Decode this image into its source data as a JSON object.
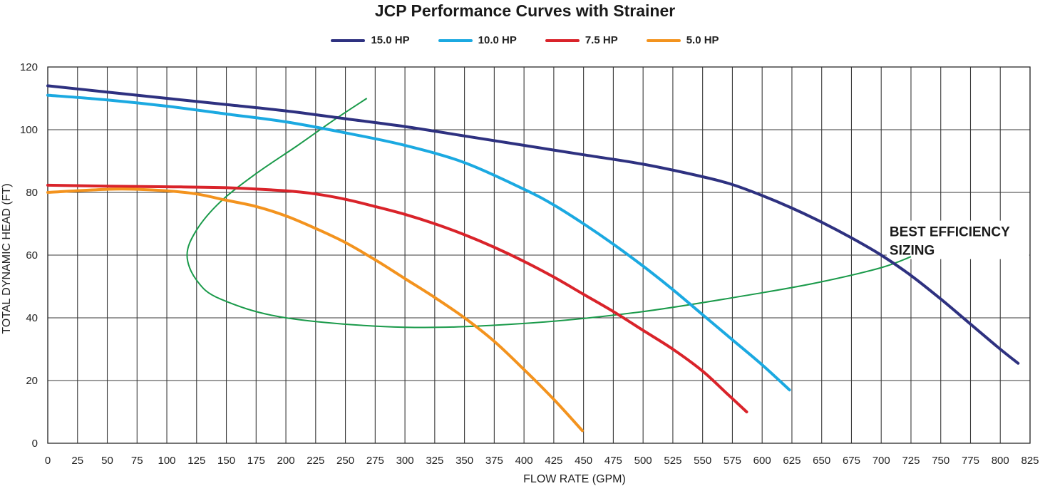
{
  "chart_data": {
    "type": "line",
    "title": "JCP Performance Curves with Strainer",
    "xlabel": "FLOW RATE (GPM)",
    "ylabel": "TOTAL DYNAMIC HEAD (FT)",
    "xlim": [
      0,
      825
    ],
    "ylim": [
      0,
      120
    ],
    "xticks": [
      0,
      25,
      50,
      75,
      100,
      125,
      150,
      175,
      200,
      225,
      250,
      275,
      300,
      325,
      350,
      375,
      400,
      425,
      450,
      475,
      500,
      525,
      550,
      575,
      600,
      625,
      650,
      675,
      700,
      725,
      750,
      775,
      800,
      825
    ],
    "yticks": [
      0,
      20,
      40,
      60,
      80,
      100,
      120
    ],
    "grid": true,
    "legend_position": "top-center",
    "series": [
      {
        "name": "15.0 HP",
        "color": "#2e3180",
        "points": [
          [
            0,
            114
          ],
          [
            50,
            112
          ],
          [
            100,
            110
          ],
          [
            150,
            108
          ],
          [
            200,
            106
          ],
          [
            250,
            103.5
          ],
          [
            300,
            101
          ],
          [
            350,
            98
          ],
          [
            400,
            95
          ],
          [
            450,
            92
          ],
          [
            500,
            89
          ],
          [
            550,
            85
          ],
          [
            575,
            82.5
          ],
          [
            600,
            79
          ],
          [
            625,
            75
          ],
          [
            650,
            70.5
          ],
          [
            675,
            65.5
          ],
          [
            700,
            60
          ],
          [
            725,
            53.5
          ],
          [
            750,
            46
          ],
          [
            775,
            38
          ],
          [
            800,
            30
          ],
          [
            815,
            25.5
          ]
        ]
      },
      {
        "name": "10.0 HP",
        "color": "#1ba9e1",
        "points": [
          [
            0,
            111
          ],
          [
            50,
            109.5
          ],
          [
            100,
            107.5
          ],
          [
            150,
            105
          ],
          [
            200,
            102.5
          ],
          [
            250,
            99
          ],
          [
            300,
            95
          ],
          [
            350,
            89.5
          ],
          [
            400,
            81
          ],
          [
            425,
            76
          ],
          [
            450,
            70
          ],
          [
            475,
            63.5
          ],
          [
            500,
            56.5
          ],
          [
            525,
            49
          ],
          [
            550,
            41
          ],
          [
            575,
            33
          ],
          [
            600,
            25
          ],
          [
            623,
            17
          ]
        ]
      },
      {
        "name": "7.5 HP",
        "color": "#d9232a",
        "points": [
          [
            0,
            82.3
          ],
          [
            50,
            82
          ],
          [
            100,
            81.8
          ],
          [
            150,
            81.5
          ],
          [
            200,
            80.5
          ],
          [
            225,
            79.5
          ],
          [
            250,
            77.8
          ],
          [
            275,
            75.5
          ],
          [
            300,
            73
          ],
          [
            325,
            70
          ],
          [
            350,
            66.5
          ],
          [
            375,
            62.5
          ],
          [
            400,
            58
          ],
          [
            425,
            53
          ],
          [
            450,
            47.5
          ],
          [
            475,
            42
          ],
          [
            500,
            36
          ],
          [
            525,
            30
          ],
          [
            550,
            23
          ],
          [
            570,
            16
          ],
          [
            587,
            10
          ]
        ]
      },
      {
        "name": "5.0 HP",
        "color": "#f3931e",
        "points": [
          [
            0,
            80
          ],
          [
            50,
            81
          ],
          [
            75,
            81
          ],
          [
            100,
            80.5
          ],
          [
            125,
            79.5
          ],
          [
            150,
            77.5
          ],
          [
            175,
            75.5
          ],
          [
            200,
            72.5
          ],
          [
            225,
            68.5
          ],
          [
            250,
            64
          ],
          [
            275,
            58.5
          ],
          [
            300,
            52.5
          ],
          [
            325,
            46.5
          ],
          [
            350,
            40
          ],
          [
            375,
            32.5
          ],
          [
            400,
            23.5
          ],
          [
            425,
            14
          ],
          [
            449,
            4
          ]
        ]
      }
    ],
    "best_efficiency_curve": {
      "color": "#1a9a4a",
      "points": [
        [
          268,
          110
        ],
        [
          240,
          103
        ],
        [
          210,
          95
        ],
        [
          175,
          86
        ],
        [
          145,
          77
        ],
        [
          125,
          68
        ],
        [
          117,
          60
        ],
        [
          125,
          52
        ],
        [
          145,
          46
        ],
        [
          200,
          40
        ],
        [
          300,
          37
        ],
        [
          400,
          38.2
        ],
        [
          500,
          42
        ],
        [
          600,
          48
        ],
        [
          650,
          51.5
        ],
        [
          700,
          56
        ],
        [
          725,
          59.5
        ]
      ]
    },
    "annotations": [
      {
        "text_line1": "BEST EFFICIENCY",
        "text_line2": "SIZING",
        "x": 707,
        "y": 66
      }
    ]
  }
}
